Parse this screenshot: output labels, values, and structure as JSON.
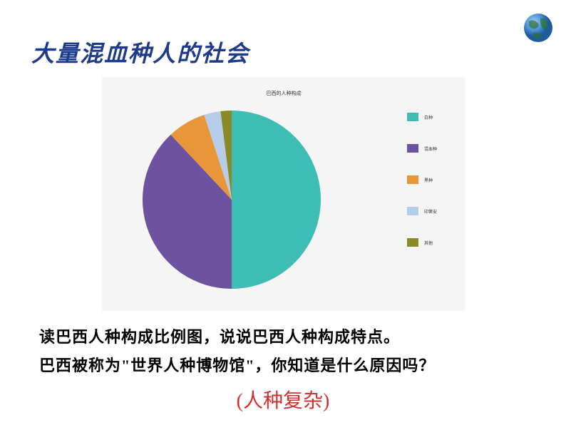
{
  "slide": {
    "title": "大量混血种人的社会",
    "body_line1": "读巴西人种构成比例图，说说巴西人种构成特点。",
    "body_line2": "巴西被称为\"世界人种博物馆\"，你知道是什么原因吗？",
    "answer": "(人种复杂)"
  },
  "globe": {
    "colors": {
      "ocean": "#4a90d9",
      "land": "#2e5c8a",
      "shadow": "#6ba3e0"
    }
  },
  "chart": {
    "type": "pie",
    "title": "巴西的人种构成",
    "background_color": "#f5f5f5",
    "pie_radius": 125,
    "label_fontsize": 6,
    "title_fontsize": 7,
    "categories": [
      "白种",
      "混血种",
      "黑种",
      "印第安",
      "其他"
    ],
    "values": [
      50,
      38,
      7,
      3,
      2
    ],
    "colors": [
      "#3ebdb4",
      "#6d52a0",
      "#e8963a",
      "#b7cce8",
      "#8a8a2a"
    ],
    "legend_swatch_width": 16,
    "legend_swatch_height": 12
  }
}
